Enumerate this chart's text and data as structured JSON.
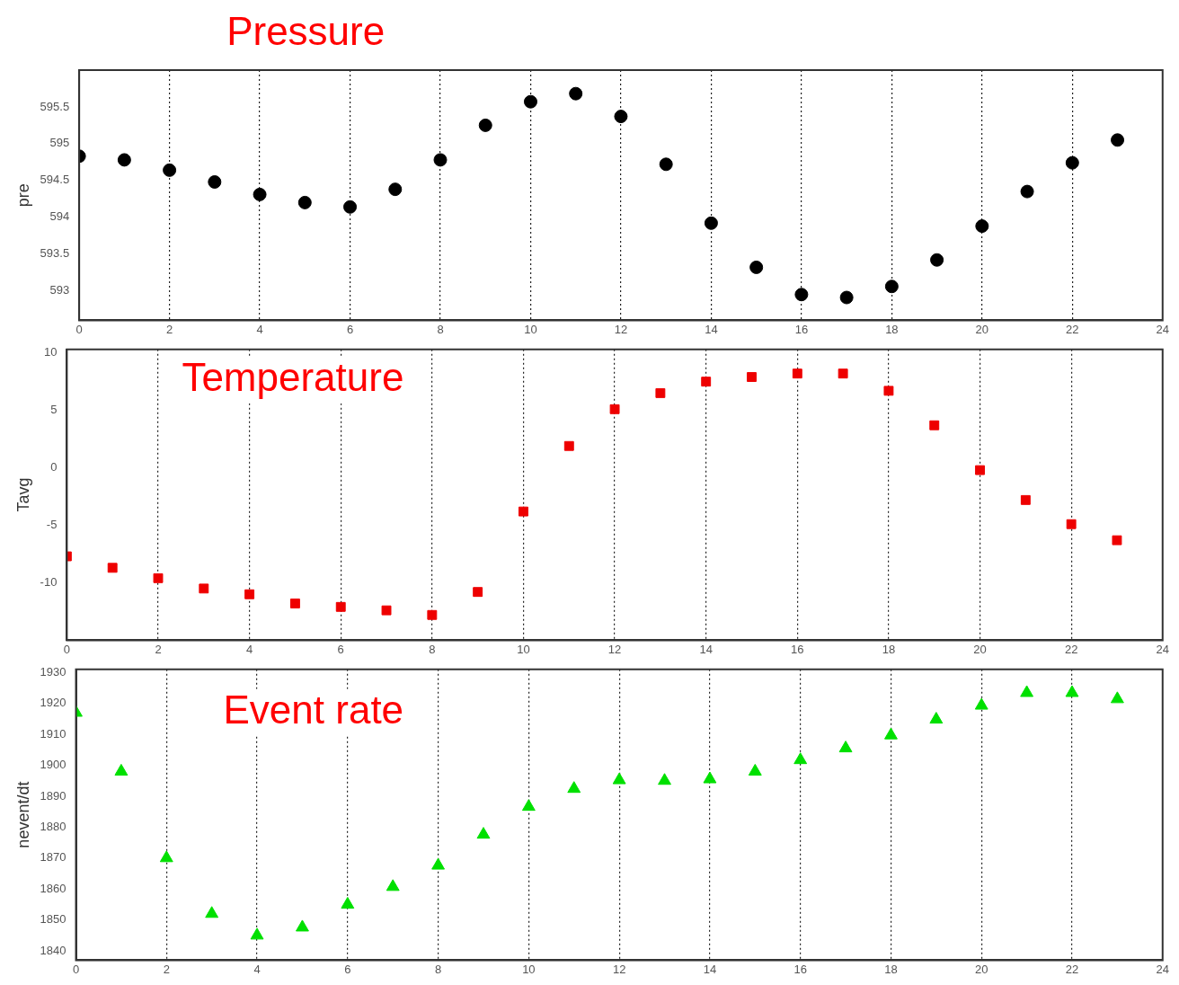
{
  "chart_data": [
    {
      "type": "scatter",
      "title": "Pressure",
      "ylabel": "pre",
      "x": [
        0,
        1,
        2,
        3,
        4,
        5,
        6,
        7,
        8,
        9,
        10,
        11,
        12,
        13,
        14,
        15,
        16,
        17,
        18,
        19,
        20,
        21,
        22,
        23
      ],
      "series": [
        {
          "color": "#000000",
          "marker": "circle",
          "values": [
            594.83,
            594.78,
            594.64,
            594.48,
            594.31,
            594.2,
            594.14,
            594.38,
            594.78,
            595.25,
            595.57,
            595.68,
            595.37,
            594.72,
            593.92,
            593.32,
            592.95,
            592.91,
            593.06,
            593.42,
            593.88,
            594.35,
            594.74,
            595.05
          ]
        }
      ],
      "xlim": [
        0,
        24
      ],
      "xticks": [
        0,
        2,
        4,
        6,
        8,
        10,
        12,
        14,
        16,
        18,
        20,
        22,
        24
      ],
      "ylim": [
        592.6,
        596
      ],
      "yticks": [
        593,
        593.5,
        594,
        594.5,
        595,
        595.5
      ],
      "grid": "x",
      "legend": false
    },
    {
      "type": "scatter",
      "title": "Temperature",
      "ylabel": "Tavg",
      "x": [
        0,
        1,
        2,
        3,
        4,
        5,
        6,
        7,
        8,
        9,
        10,
        11,
        12,
        13,
        14,
        15,
        16,
        17,
        18,
        19,
        20,
        21,
        22,
        23
      ],
      "series": [
        {
          "color": "#ee0000",
          "marker": "square",
          "values": [
            -7.7,
            -8.7,
            -9.6,
            -10.5,
            -11.0,
            -11.8,
            -12.1,
            -12.4,
            -12.8,
            -10.8,
            -3.8,
            1.9,
            5.1,
            6.5,
            7.5,
            7.9,
            8.2,
            8.2,
            6.7,
            3.7,
            -0.2,
            -2.8,
            -4.9,
            -6.3
          ]
        }
      ],
      "xlim": [
        0,
        24
      ],
      "xticks": [
        0,
        2,
        4,
        6,
        8,
        10,
        12,
        14,
        16,
        18,
        20,
        22,
        24
      ],
      "ylim": [
        -15,
        10.3
      ],
      "yticks": [
        -10,
        -5,
        0,
        5,
        10
      ],
      "grid": "x",
      "legend": false
    },
    {
      "type": "scatter",
      "title": "Event rate",
      "ylabel": "nevent/dt",
      "x": [
        0,
        1,
        2,
        3,
        4,
        5,
        6,
        7,
        8,
        9,
        10,
        11,
        12,
        13,
        14,
        15,
        16,
        17,
        18,
        19,
        20,
        21,
        22,
        23
      ],
      "series": [
        {
          "color": "#00e000",
          "marker": "triangle",
          "values": [
            1917,
            1898,
            1870,
            1852,
            1845,
            1847.6,
            1855,
            1860.7,
            1867.6,
            1877.6,
            1886.6,
            1892.4,
            1895.2,
            1895,
            1895.5,
            1898,
            1901.7,
            1905.5,
            1909.7,
            1914.8,
            1919.3,
            1923.4,
            1923.4,
            1921.4
          ]
        }
      ],
      "xlim": [
        0,
        24
      ],
      "xticks": [
        0,
        2,
        4,
        6,
        8,
        10,
        12,
        14,
        16,
        18,
        20,
        22,
        24
      ],
      "ylim": [
        1837,
        1931
      ],
      "yticks": [
        1840,
        1850,
        1860,
        1870,
        1880,
        1890,
        1900,
        1910,
        1920,
        1930
      ],
      "grid": "x",
      "legend": false
    }
  ]
}
